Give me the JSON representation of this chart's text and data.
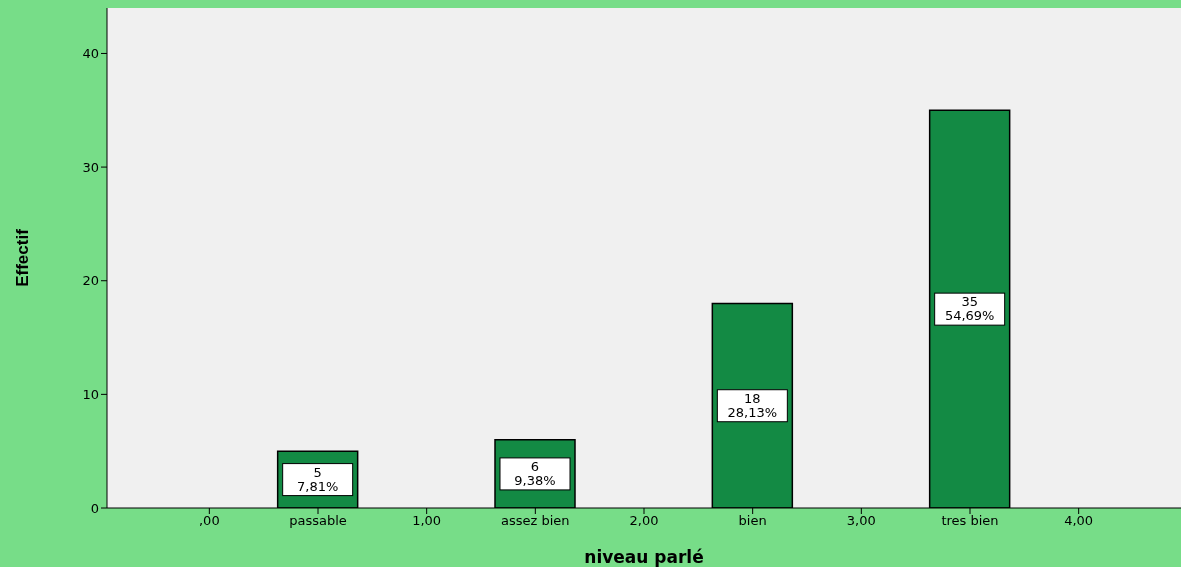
{
  "chart_data": {
    "type": "bar",
    "xlabel": "niveau parlé",
    "ylabel": "Effectif",
    "categories": [
      ",00",
      "passable",
      "1,00",
      "assez bien",
      "2,00",
      "bien",
      "3,00",
      "tres bien",
      "4,00"
    ],
    "values": [
      null,
      5,
      null,
      6,
      null,
      18,
      null,
      35,
      null
    ],
    "value_labels": [
      null,
      "5\n7,81%",
      null,
      "6\n9,38%",
      null,
      "18\n28,13%",
      null,
      "35\n54,69%",
      null
    ],
    "color": "#138a44",
    "ylim": [
      0,
      44
    ],
    "yticks": [
      0,
      10,
      20,
      30,
      40
    ],
    "grid": false,
    "legend": false
  }
}
